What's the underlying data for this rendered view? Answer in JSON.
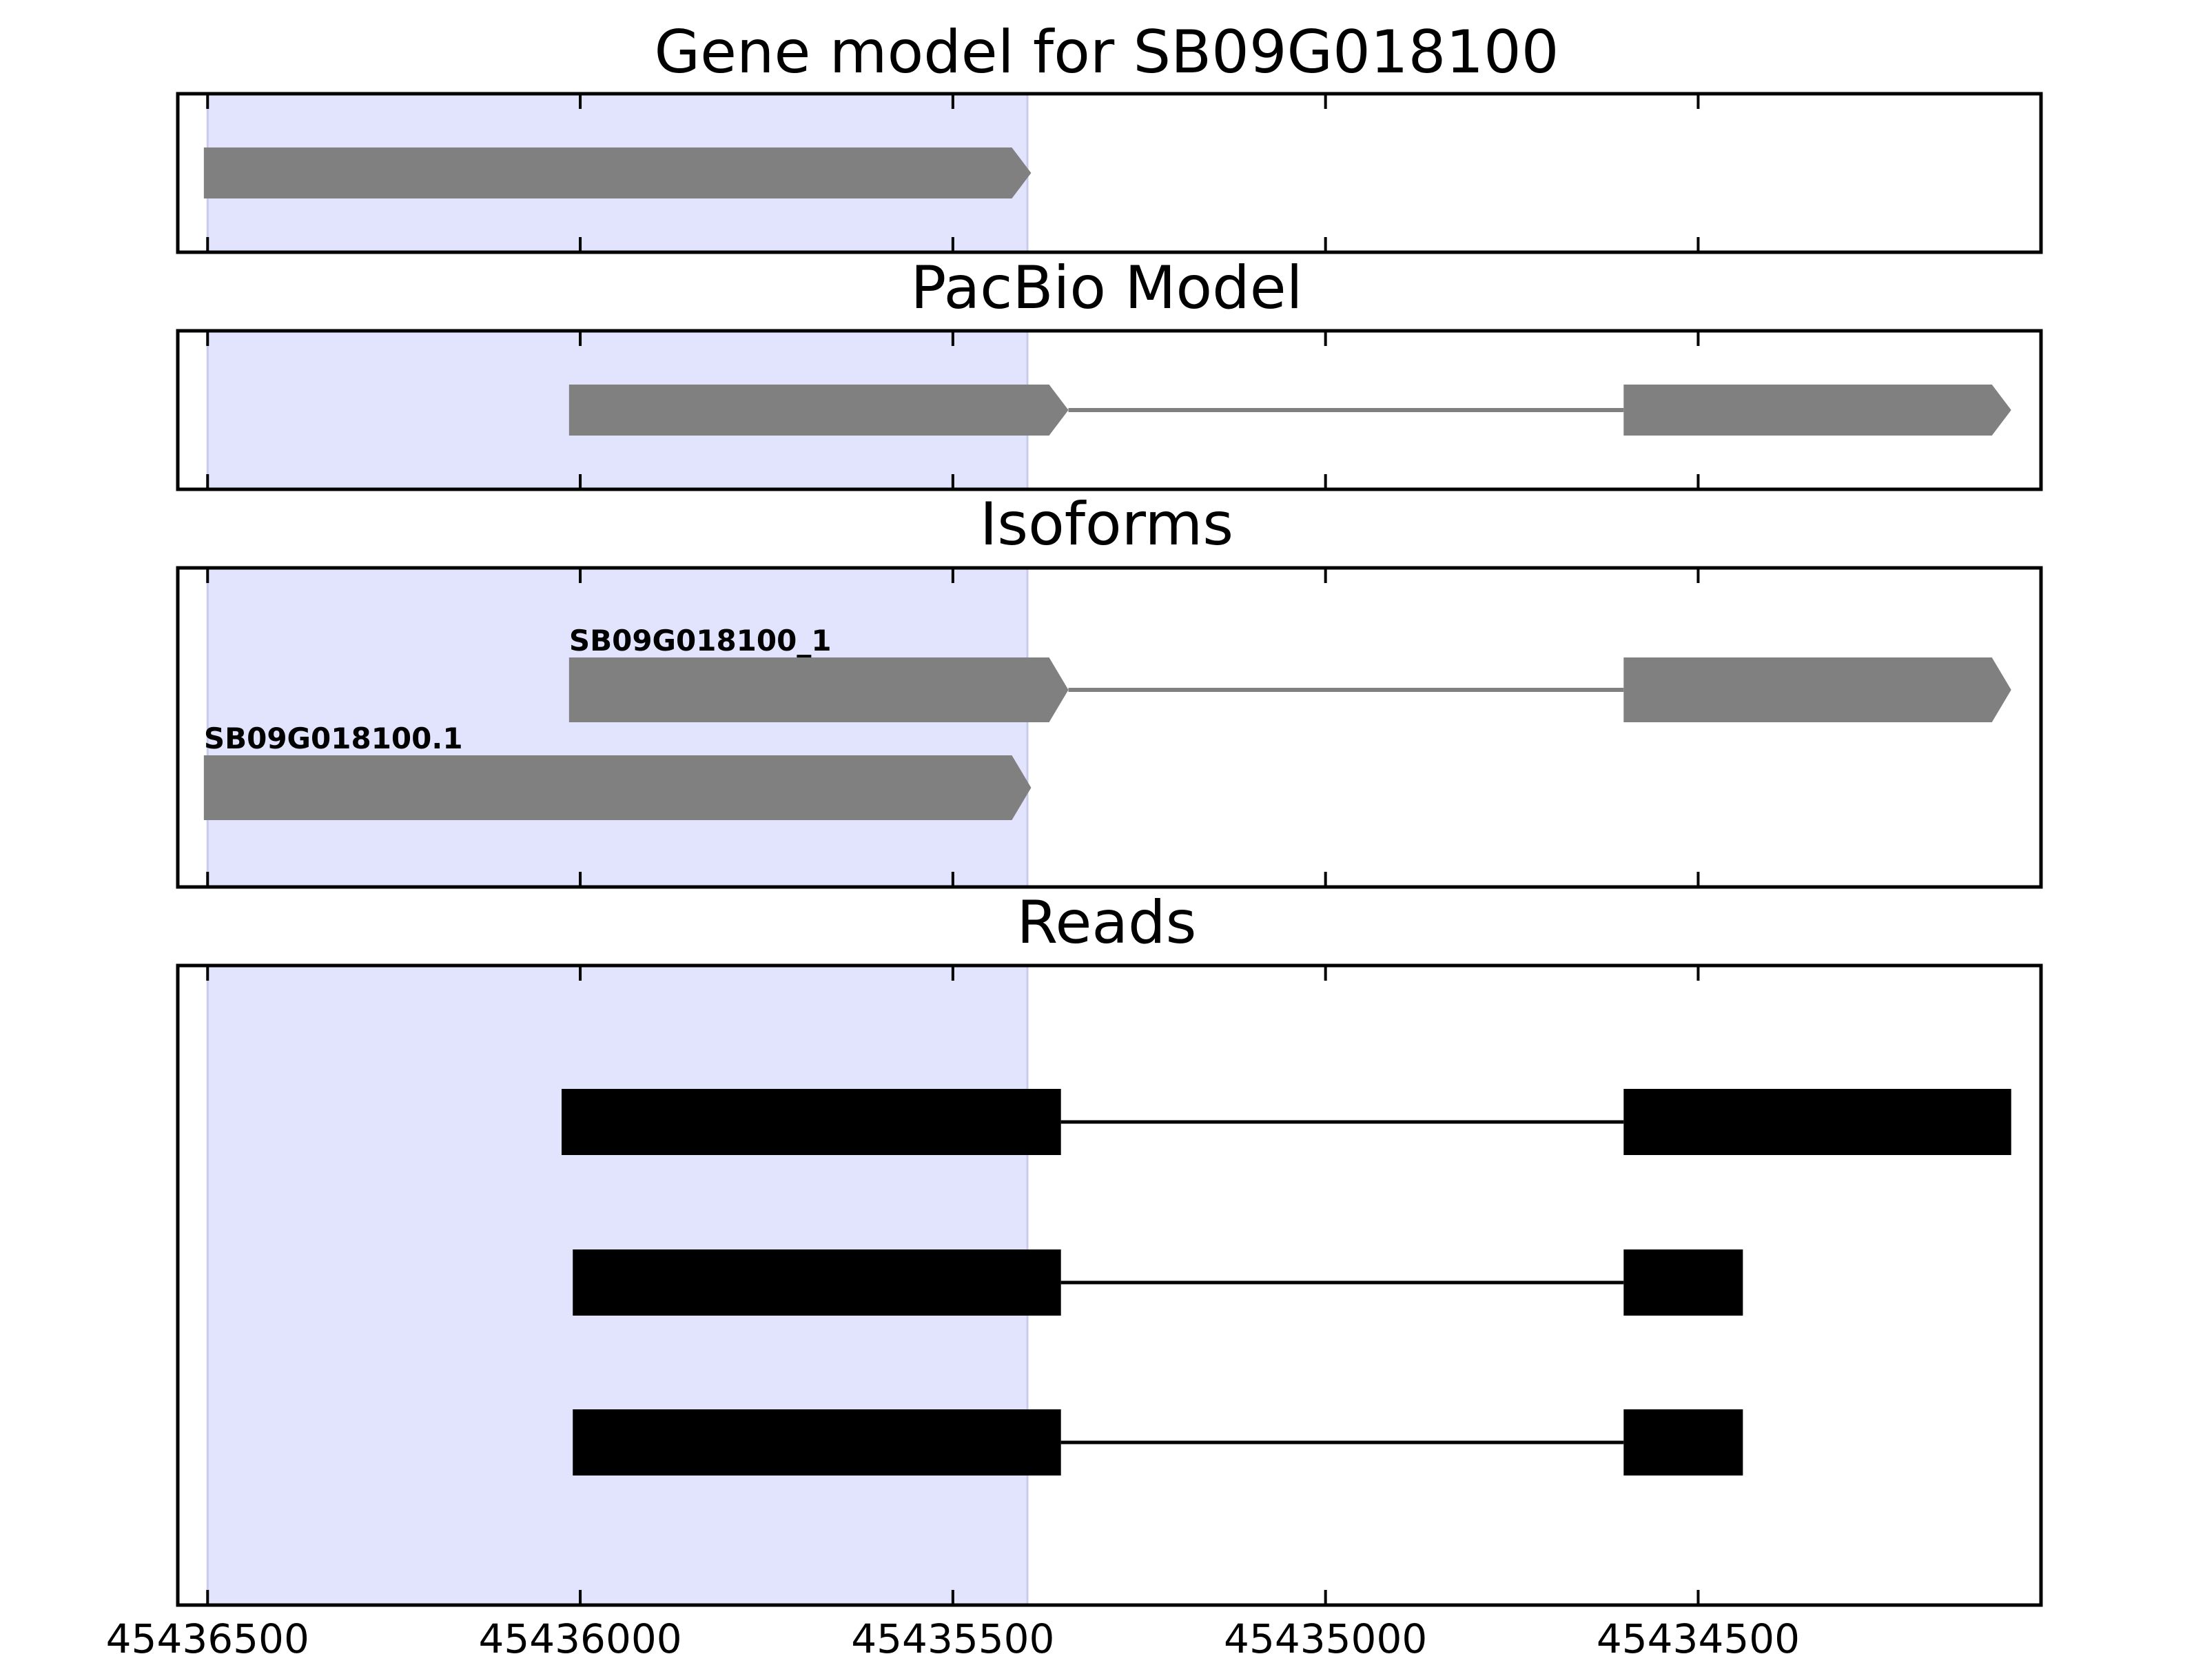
{
  "chart_data": {
    "type": "gene_track",
    "x_axis": {
      "domain": [
        45436540,
        45434040
      ],
      "ticks": [
        45436500,
        45436000,
        45435500,
        45435000,
        45434500
      ],
      "tick_labels": [
        "45436500",
        "45436000",
        "45435500",
        "45435000",
        "45434500"
      ]
    },
    "highlight_region": [
      45436500,
      45435400
    ],
    "colors": {
      "highlight": "#e2e3fd",
      "feature": "#808080",
      "read": "#000000"
    },
    "panels": [
      {
        "title": "Gene model for SB09G018100",
        "features": [
          {
            "start": 45436505,
            "end": 45435395,
            "strand": "-",
            "exons": [
              [
                45436505,
                45435395
              ]
            ]
          }
        ]
      },
      {
        "title": "PacBio Model",
        "features": [
          {
            "start": 45436015,
            "end": 45434080,
            "strand": "-",
            "exons": [
              [
                45436015,
                45435345
              ],
              [
                45434600,
                45434080
              ]
            ]
          }
        ]
      },
      {
        "title": "Isoforms",
        "features": [
          {
            "label": "SB09G018100_1",
            "start": 45436015,
            "end": 45434080,
            "strand": "-",
            "exons": [
              [
                45436015,
                45435345
              ],
              [
                45434600,
                45434080
              ]
            ]
          },
          {
            "label": "SB09G018100.1",
            "start": 45436505,
            "end": 45435395,
            "strand": "-",
            "exons": [
              [
                45436505,
                45435395
              ]
            ]
          }
        ]
      },
      {
        "title": "Reads",
        "features": [
          {
            "exons": [
              [
                45436025,
                45435355
              ],
              [
                45434600,
                45434080
              ]
            ]
          },
          {
            "exons": [
              [
                45436010,
                45435355
              ],
              [
                45434600,
                45434440
              ]
            ]
          },
          {
            "exons": [
              [
                45436010,
                45435355
              ],
              [
                45434600,
                45434440
              ]
            ]
          }
        ]
      }
    ]
  }
}
